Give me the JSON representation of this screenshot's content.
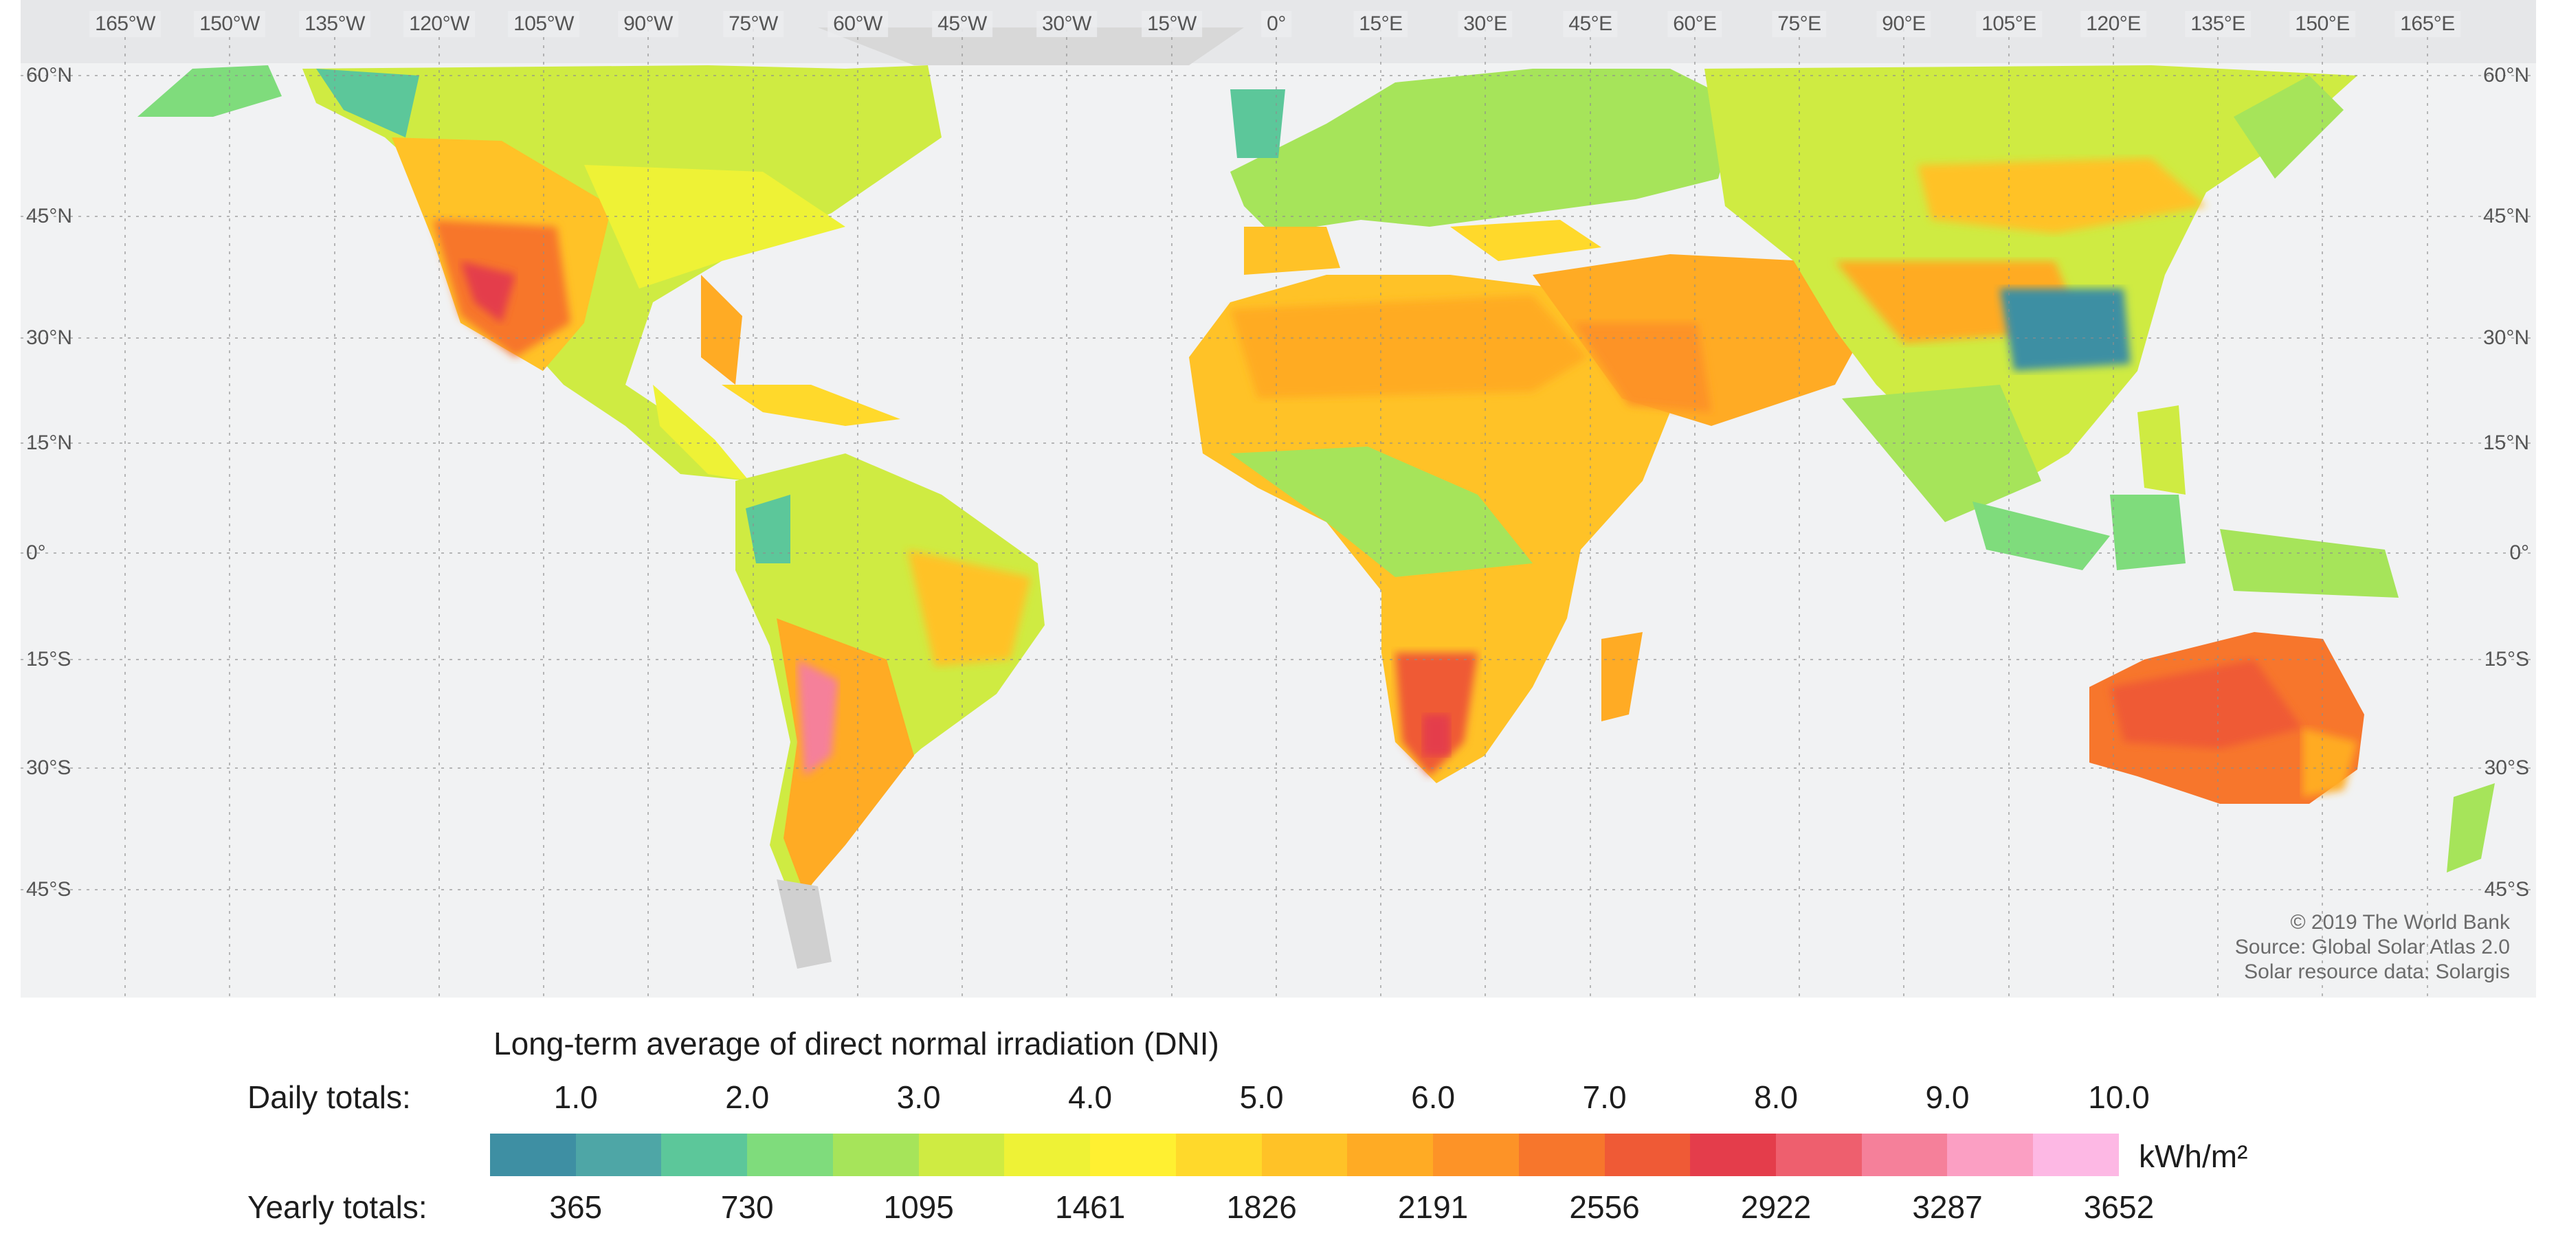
{
  "map": {
    "lon_labels": [
      "165°W",
      "150°W",
      "135°W",
      "120°W",
      "105°W",
      "90°W",
      "75°W",
      "60°W",
      "45°W",
      "30°W",
      "15°W",
      "0°",
      "15°E",
      "30°E",
      "45°E",
      "60°E",
      "75°E",
      "90°E",
      "105°E",
      "120°E",
      "135°E",
      "150°E",
      "165°E"
    ],
    "lat_labels": [
      "60°N",
      "45°N",
      "30°N",
      "15°N",
      "0°",
      "15°S",
      "30°S",
      "45°S"
    ],
    "credits": [
      "© 2019 The World Bank",
      "Source: Global Solar Atlas 2.0",
      "Solar resource data: Solargis"
    ]
  },
  "legend": {
    "title": "Long-term average of direct normal irradiation (DNI)",
    "daily_label": "Daily totals:",
    "yearly_label": "Yearly totals:",
    "daily_ticks": [
      "1.0",
      "2.0",
      "3.0",
      "4.0",
      "5.0",
      "6.0",
      "7.0",
      "8.0",
      "9.0",
      "10.0"
    ],
    "yearly_ticks": [
      "365",
      "730",
      "1095",
      "1461",
      "1826",
      "2191",
      "2556",
      "2922",
      "3287",
      "3652"
    ],
    "unit": "kWh/m²",
    "colors": [
      "#3e8fa3",
      "#4ea6a6",
      "#5cc79a",
      "#7fdc7c",
      "#a6e45a",
      "#cfeb42",
      "#eef236",
      "#fff031",
      "#ffd92b",
      "#ffc227",
      "#ffab24",
      "#fd9327",
      "#f7762c",
      "#ef5a36",
      "#e43d4b",
      "#ee5f6e",
      "#f5809a",
      "#fb9fc3",
      "#fdb8e4"
    ]
  }
}
